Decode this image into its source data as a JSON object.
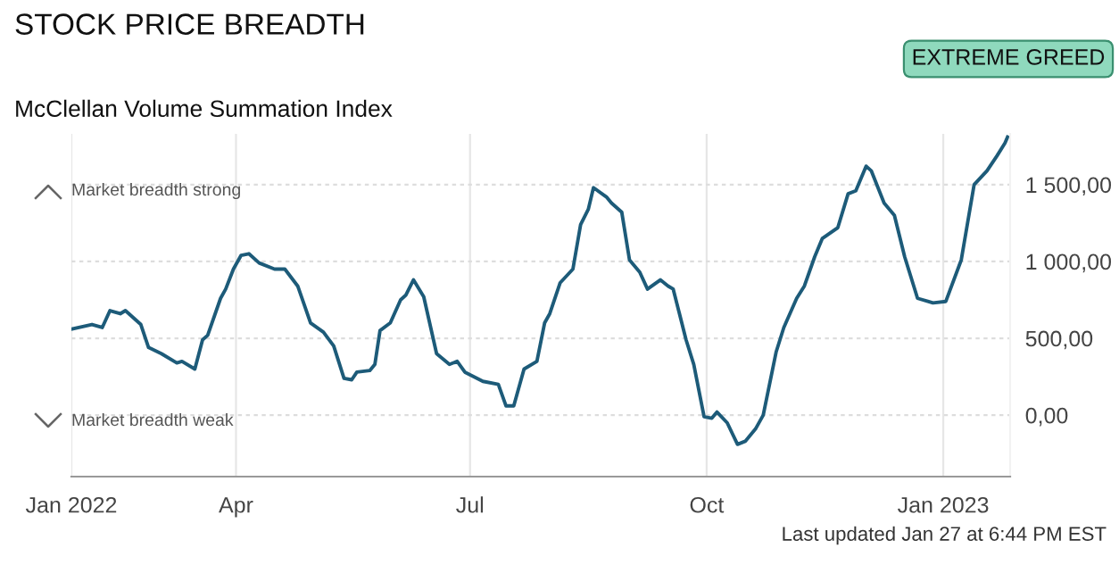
{
  "chart_data": {
    "type": "line",
    "title": "STOCK PRICE BREADTH",
    "subtitle": "McClellan Volume Summation Index",
    "annotations": [
      "Market breadth strong",
      "Market breadth weak",
      "EXTREME GREED",
      "Last updated Jan 27 at 6:44 PM EST"
    ],
    "x": [
      "2022-01-27",
      "2022-02-04",
      "2022-02-08",
      "2022-02-11",
      "2022-02-15",
      "2022-02-17",
      "2022-02-23",
      "2022-02-26",
      "2022-03-03",
      "2022-03-09",
      "2022-03-11",
      "2022-03-16",
      "2022-03-19",
      "2022-03-21",
      "2022-03-26",
      "2022-03-28",
      "2022-03-31",
      "2022-04-03",
      "2022-04-06",
      "2022-04-10",
      "2022-04-16",
      "2022-04-20",
      "2022-04-25",
      "2022-04-30",
      "2022-05-05",
      "2022-05-09",
      "2022-05-13",
      "2022-05-16",
      "2022-05-18",
      "2022-05-23",
      "2022-05-25",
      "2022-05-27",
      "2022-05-31",
      "2022-06-04",
      "2022-06-06",
      "2022-06-09",
      "2022-06-13",
      "2022-06-18",
      "2022-06-23",
      "2022-06-26",
      "2022-06-29",
      "2022-07-06",
      "2022-07-12",
      "2022-07-15",
      "2022-07-18",
      "2022-07-22",
      "2022-07-27",
      "2022-07-30",
      "2022-08-01",
      "2022-08-05",
      "2022-08-10",
      "2022-08-13",
      "2022-08-16",
      "2022-08-18",
      "2022-08-23",
      "2022-08-25",
      "2022-08-29",
      "2022-09-01",
      "2022-09-05",
      "2022-09-08",
      "2022-09-13",
      "2022-09-16",
      "2022-09-18",
      "2022-09-23",
      "2022-09-26",
      "2022-09-30",
      "2022-10-03",
      "2022-10-05",
      "2022-10-09",
      "2022-10-13",
      "2022-10-16",
      "2022-10-20",
      "2022-10-23",
      "2022-10-28",
      "2022-10-31",
      "2022-11-05",
      "2022-11-08",
      "2022-11-12",
      "2022-11-15",
      "2022-11-21",
      "2022-11-25",
      "2022-11-28",
      "2022-12-02",
      "2022-12-04",
      "2022-12-09",
      "2022-12-13",
      "2022-12-17",
      "2022-12-22",
      "2022-12-26",
      "2022-12-28",
      "2023-01-02",
      "2023-01-08",
      "2023-01-13",
      "2023-01-18",
      "2023-01-22",
      "2023-01-25",
      "2023-01-26"
    ],
    "series": [
      {
        "color": "#1d5b79",
        "values": [
          560,
          590,
          570,
          680,
          660,
          680,
          590,
          440,
          400,
          340,
          350,
          300,
          490,
          520,
          760,
          820,
          950,
          1040,
          1050,
          990,
          950,
          950,
          840,
          600,
          540,
          450,
          240,
          230,
          280,
          290,
          330,
          550,
          600,
          750,
          780,
          880,
          770,
          400,
          330,
          350,
          280,
          220,
          200,
          60,
          60,
          300,
          350,
          600,
          660,
          860,
          950,
          1240,
          1340,
          1480,
          1420,
          1380,
          1320,
          1010,
          930,
          820,
          880,
          840,
          820,
          490,
          330,
          -10,
          -20,
          20,
          -50,
          -190,
          -170,
          -90,
          0,
          410,
          570,
          760,
          840,
          1030,
          1150,
          1220,
          1440,
          1460,
          1620,
          1590,
          1380,
          1300,
          1030,
          760,
          740,
          730,
          740,
          1010,
          1500,
          1590,
          1690,
          1770,
          1810
        ]
      }
    ],
    "xlim": [
      "2022-01-27",
      "2023-01-27"
    ],
    "xticks": [
      {
        "value": "2022-01-27",
        "label": "Jan 2022"
      },
      {
        "value": "2022-04-01",
        "label": "Apr"
      },
      {
        "value": "2022-07-01",
        "label": "Jul"
      },
      {
        "value": "2022-10-01",
        "label": "Oct"
      },
      {
        "value": "2023-01-01",
        "label": "Jan 2023"
      }
    ],
    "ylim": [
      -400,
      1830
    ],
    "yticks": [
      {
        "value": 0,
        "label": "0,00"
      },
      {
        "value": 500,
        "label": "500,00"
      },
      {
        "value": 1000,
        "label": "1 000,00"
      },
      {
        "value": 1500,
        "label": "1 500,00"
      }
    ],
    "grid": true,
    "legend": false,
    "marker": "none",
    "line_style": "solid"
  }
}
